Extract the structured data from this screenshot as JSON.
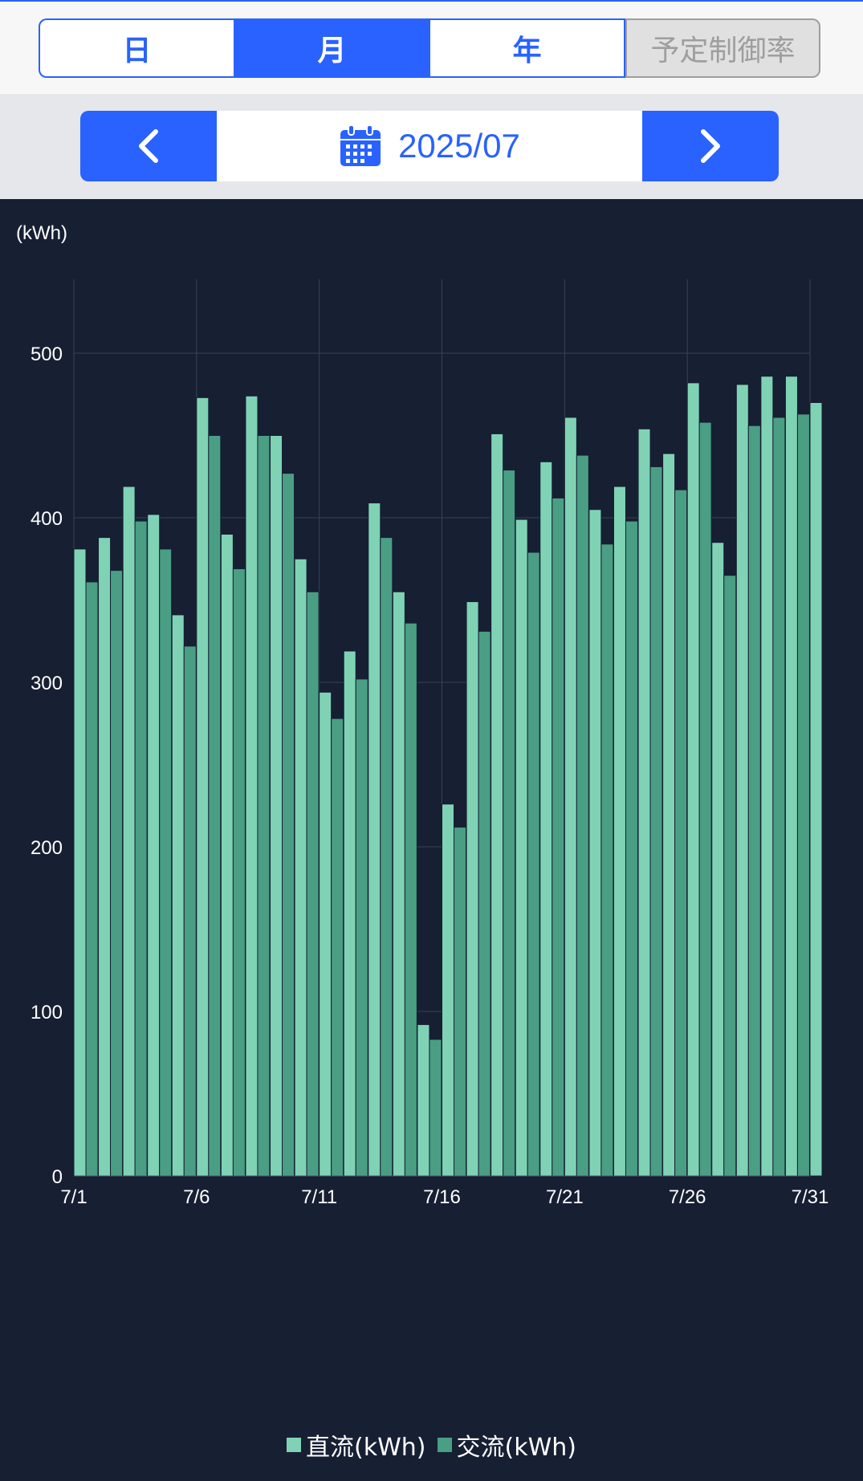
{
  "tabs": {
    "day": "日",
    "month": "月",
    "year": "年",
    "rate": "予定制御率"
  },
  "date_nav": {
    "current": "2025/07",
    "prev_icon": "chevron-left-icon",
    "next_icon": "chevron-right-icon",
    "calendar_icon": "calendar-icon"
  },
  "colors": {
    "accent": "#2962ff",
    "chart_bg": "#171f33",
    "dc_bar": "#7fd3b4",
    "ac_bar": "#4a9e83"
  },
  "chart_data": {
    "type": "bar",
    "ylabel": "(kWh)",
    "ylim": [
      0,
      535
    ],
    "yticks": [
      0,
      100,
      200,
      300,
      400,
      500
    ],
    "categories": [
      "7/1",
      "7/2",
      "7/3",
      "7/4",
      "7/5",
      "7/6",
      "7/7",
      "7/8",
      "7/9",
      "7/10",
      "7/11",
      "7/12",
      "7/13",
      "7/14",
      "7/15",
      "7/16",
      "7/17",
      "7/18",
      "7/19",
      "7/20",
      "7/21",
      "7/22",
      "7/23",
      "7/24",
      "7/25",
      "7/26",
      "7/27",
      "7/28",
      "7/29",
      "7/30",
      "7/31"
    ],
    "xtick_labels": [
      "7/1",
      "7/6",
      "7/11",
      "7/16",
      "7/21",
      "7/26",
      "7/31"
    ],
    "grid": true,
    "legend_position": "bottom",
    "series": [
      {
        "name": "直流(kWh)",
        "values": [
          381,
          388,
          419,
          402,
          341,
          473,
          390,
          474,
          450,
          375,
          294,
          319,
          409,
          355,
          92,
          226,
          349,
          451,
          399,
          434,
          461,
          405,
          419,
          454,
          439,
          482,
          385,
          481,
          486,
          486,
          470
        ]
      },
      {
        "name": "交流(kWh)",
        "values": [
          361,
          368,
          398,
          381,
          322,
          450,
          369,
          450,
          427,
          355,
          278,
          302,
          388,
          336,
          83,
          212,
          331,
          429,
          379,
          412,
          438,
          384,
          398,
          431,
          417,
          458,
          365,
          456,
          461,
          463,
          null
        ]
      }
    ]
  }
}
